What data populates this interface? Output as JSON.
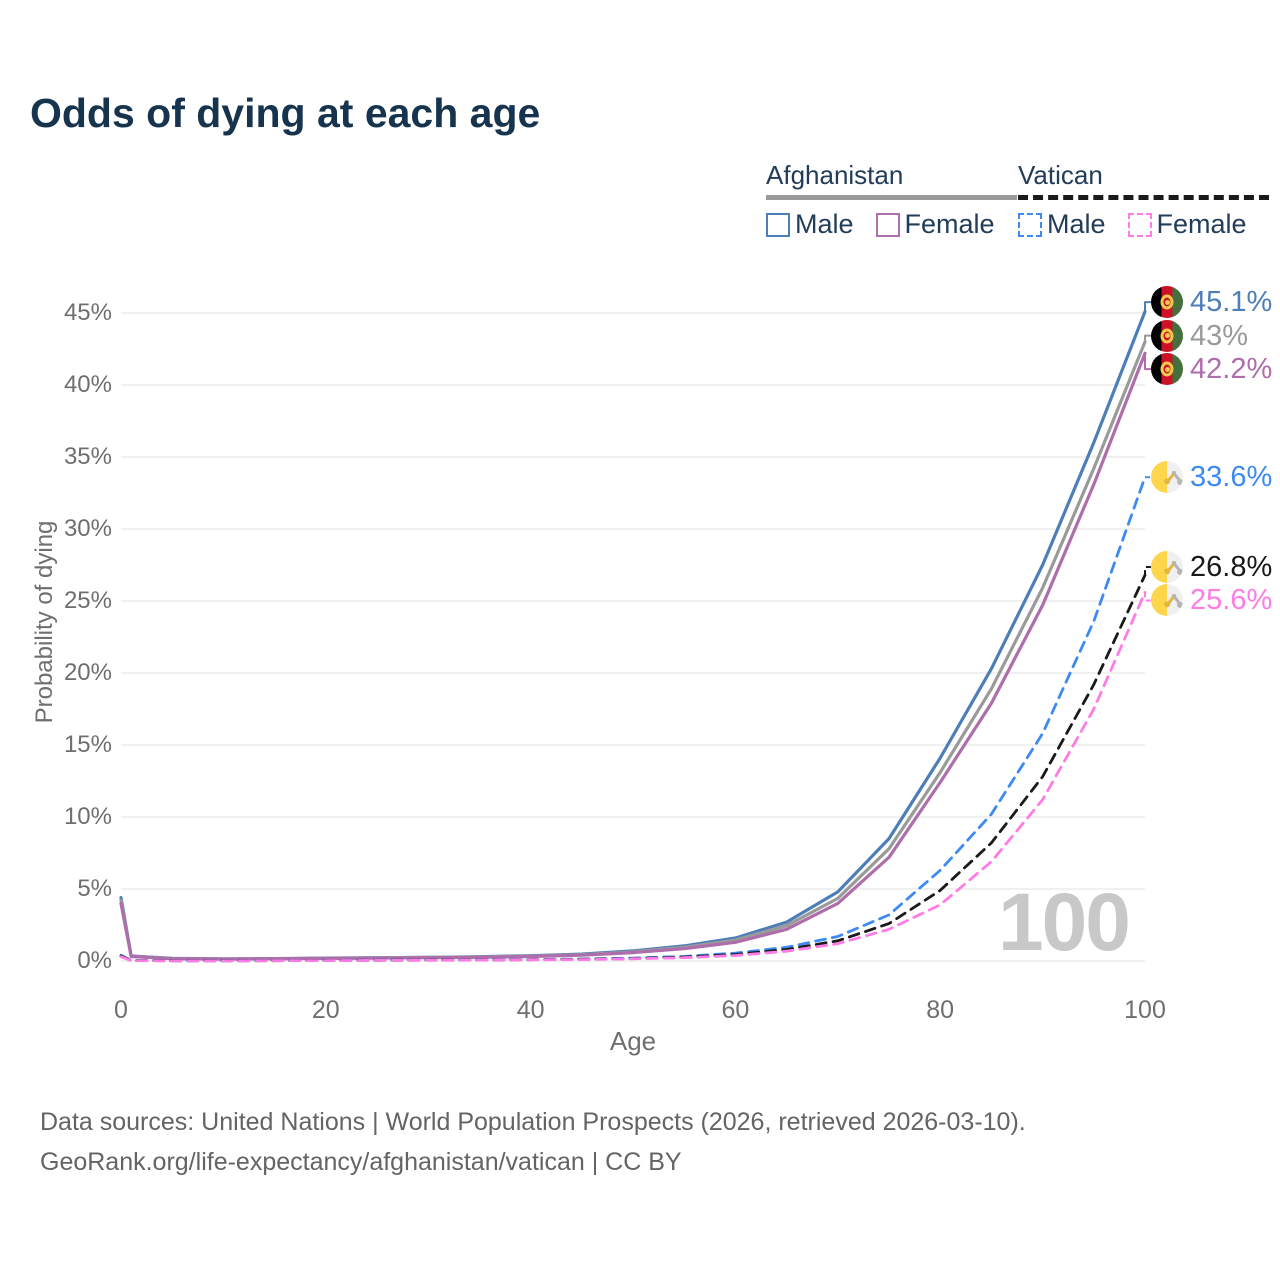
{
  "title": "Odds of dying at each age",
  "colors": {
    "title_text": "#17344f",
    "legend_text": "#223c59",
    "axis_text": "#6f6f6f",
    "gridline": "#ebebeb",
    "watermark_text": "#c8c8c8",
    "footer_text": "#646464",
    "afghanistan_male": "#4d7eb8",
    "afghanistan_both": "#9a9a9a",
    "afghanistan_female": "#ae6dab",
    "vatican_male": "#3e8af2",
    "vatican_both": "#1a1a1a",
    "vatican_female": "#ff7ce6"
  },
  "legend": {
    "groups": [
      {
        "country": "Afghanistan",
        "underline_style": "solid",
        "underline_color": "#9a9a9a",
        "items": [
          {
            "label": "Male",
            "color": "#4d7eb8",
            "dash": false
          },
          {
            "label": "Female",
            "color": "#ae6dab",
            "dash": false
          }
        ]
      },
      {
        "country": "Vatican",
        "underline_style": "dashed",
        "underline_color": "#1a1a1a",
        "items": [
          {
            "label": "Male",
            "color": "#3e8af2",
            "dash": true
          },
          {
            "label": "Female",
            "color": "#ff7ce6",
            "dash": true
          }
        ]
      }
    ]
  },
  "chart_data": {
    "type": "line",
    "title": "Odds of dying at each age",
    "xlabel": "Age",
    "ylabel": "Probability of dying",
    "units": "percent probability of dying at each age",
    "xlim": [
      0,
      100
    ],
    "ylim": [
      0,
      46.5
    ],
    "grid": true,
    "legend_position": "top-right",
    "watermark": "100",
    "x": [
      0,
      1,
      5,
      10,
      15,
      20,
      25,
      30,
      35,
      40,
      45,
      50,
      55,
      60,
      65,
      70,
      75,
      80,
      85,
      90,
      95,
      100
    ],
    "xticks": [
      {
        "label": "0",
        "value": 0
      },
      {
        "label": "20",
        "value": 20
      },
      {
        "label": "40",
        "value": 40
      },
      {
        "label": "60",
        "value": 60
      },
      {
        "label": "80",
        "value": 80
      },
      {
        "label": "100",
        "value": 100
      }
    ],
    "yticks": [
      {
        "label": "0%",
        "value": 0
      },
      {
        "label": "5%",
        "value": 5
      },
      {
        "label": "10%",
        "value": 10
      },
      {
        "label": "15%",
        "value": 15
      },
      {
        "label": "20%",
        "value": 20
      },
      {
        "label": "25%",
        "value": 25
      },
      {
        "label": "30%",
        "value": 30
      },
      {
        "label": "35%",
        "value": 35
      },
      {
        "label": "40%",
        "value": 40
      },
      {
        "label": "45%",
        "value": 45
      }
    ],
    "series": [
      {
        "name": "Afghanistan Male",
        "country": "Afghanistan",
        "sex": "Male",
        "color": "#4d7eb8",
        "dash": "solid",
        "flag_icon": "afghanistan-flag-icon",
        "end_label": "45.1%",
        "end_value": 45.1,
        "values": [
          4.4,
          0.35,
          0.18,
          0.15,
          0.17,
          0.2,
          0.23,
          0.26,
          0.3,
          0.37,
          0.48,
          0.7,
          1.05,
          1.6,
          2.7,
          4.8,
          8.5,
          14.1,
          20.3,
          27.5,
          36.0,
          45.1
        ]
      },
      {
        "name": "Afghanistan Both sexes",
        "country": "Afghanistan",
        "sex": "Both",
        "color": "#9a9a9a",
        "dash": "solid",
        "flag_icon": "afghanistan-flag-icon",
        "end_label": "43%",
        "end_value": 43.0,
        "values": [
          4.2,
          0.33,
          0.17,
          0.14,
          0.16,
          0.19,
          0.22,
          0.25,
          0.28,
          0.34,
          0.44,
          0.64,
          0.95,
          1.45,
          2.45,
          4.35,
          7.8,
          13.1,
          18.9,
          25.9,
          34.2,
          43.0
        ]
      },
      {
        "name": "Afghanistan Female",
        "country": "Afghanistan",
        "sex": "Female",
        "color": "#ae6dab",
        "dash": "solid",
        "flag_icon": "afghanistan-flag-icon",
        "end_label": "42.2%",
        "end_value": 42.2,
        "values": [
          4.0,
          0.31,
          0.16,
          0.13,
          0.15,
          0.18,
          0.2,
          0.23,
          0.26,
          0.31,
          0.4,
          0.58,
          0.86,
          1.3,
          2.2,
          4.0,
          7.2,
          12.4,
          17.9,
          24.7,
          33.1,
          42.2
        ]
      },
      {
        "name": "Vatican Male",
        "country": "Vatican",
        "sex": "Male",
        "color": "#3e8af2",
        "dash": "dashed",
        "flag_icon": "vatican-flag-icon",
        "end_label": "33.6%",
        "end_value": 33.6,
        "values": [
          0.4,
          0.04,
          0.02,
          0.02,
          0.03,
          0.05,
          0.06,
          0.07,
          0.08,
          0.1,
          0.14,
          0.2,
          0.32,
          0.55,
          0.95,
          1.7,
          3.2,
          6.3,
          10.2,
          15.8,
          23.6,
          33.6
        ]
      },
      {
        "name": "Vatican Both sexes",
        "country": "Vatican",
        "sex": "Both",
        "color": "#1a1a1a",
        "dash": "dashed",
        "flag_icon": "vatican-flag-icon",
        "end_label": "26.8%",
        "end_value": 26.8,
        "values": [
          0.35,
          0.03,
          0.02,
          0.02,
          0.02,
          0.04,
          0.05,
          0.06,
          0.07,
          0.09,
          0.12,
          0.17,
          0.27,
          0.45,
          0.8,
          1.4,
          2.6,
          4.9,
          8.2,
          12.8,
          19.2,
          26.8
        ]
      },
      {
        "name": "Vatican Female",
        "country": "Vatican",
        "sex": "Female",
        "color": "#ff7ce6",
        "dash": "dashed",
        "flag_icon": "vatican-flag-icon",
        "end_label": "25.6%",
        "end_value": 25.6,
        "values": [
          0.3,
          0.03,
          0.01,
          0.01,
          0.02,
          0.03,
          0.04,
          0.05,
          0.06,
          0.08,
          0.1,
          0.15,
          0.23,
          0.38,
          0.68,
          1.2,
          2.2,
          3.9,
          6.9,
          11.2,
          17.5,
          25.6
        ]
      }
    ]
  },
  "footer": {
    "line1": "Data sources: United Nations | World Population Prospects (2026, retrieved 2026-03-10).",
    "line2": "GeoRank.org/life-expectancy/afghanistan/vatican | CC BY"
  }
}
